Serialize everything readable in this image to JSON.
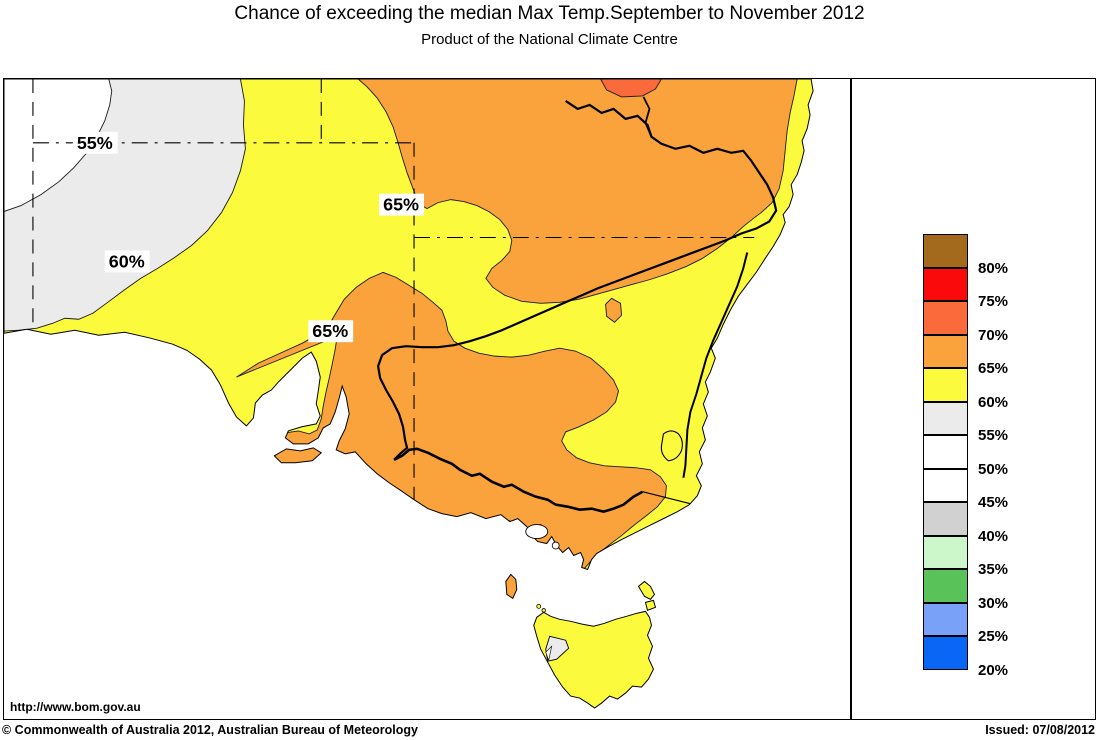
{
  "header": {
    "title": "Chance of exceeding the median Max Temp.September to November 2012",
    "subtitle": "Product of the National Climate Centre"
  },
  "map": {
    "url_label": "http://www.bom.gov.au",
    "contour_labels": {
      "nw": "55%",
      "west": "60%",
      "north": "65%",
      "south": "65%"
    },
    "region_colors": {
      "yellow_60_65": "#FCFA3D",
      "orange_65_70": "#FAA23B",
      "red_70_75": "#FA6A3A",
      "gray_55_60": "#EBEBEB",
      "white_50_55": "#FFFFFF",
      "ocean": "#FFFFFF"
    }
  },
  "legend": {
    "items": [
      {
        "label": "80%",
        "color": "#A3691D"
      },
      {
        "label": "75%",
        "color": "#FA0A0A"
      },
      {
        "label": "70%",
        "color": "#FA6A3A"
      },
      {
        "label": "65%",
        "color": "#FAA23B"
      },
      {
        "label": "60%",
        "color": "#FCFA3D"
      },
      {
        "label": "55%",
        "color": "#EBEBEB"
      },
      {
        "label": "50%",
        "color": "#FFFFFF"
      },
      {
        "label": "45%",
        "color": "#FFFFFF"
      },
      {
        "label": "40%",
        "color": "#D1D1D1"
      },
      {
        "label": "35%",
        "color": "#CBF7CB"
      },
      {
        "label": "30%",
        "color": "#59C259"
      },
      {
        "label": "25%",
        "color": "#78A1F7"
      },
      {
        "label": "20%",
        "color": "#0A66F5"
      }
    ]
  },
  "footer": {
    "copyright": "© Commonwealth of Australia 2012, Australian Bureau of Meteorology",
    "issued": "Issued: 07/08/2012"
  }
}
